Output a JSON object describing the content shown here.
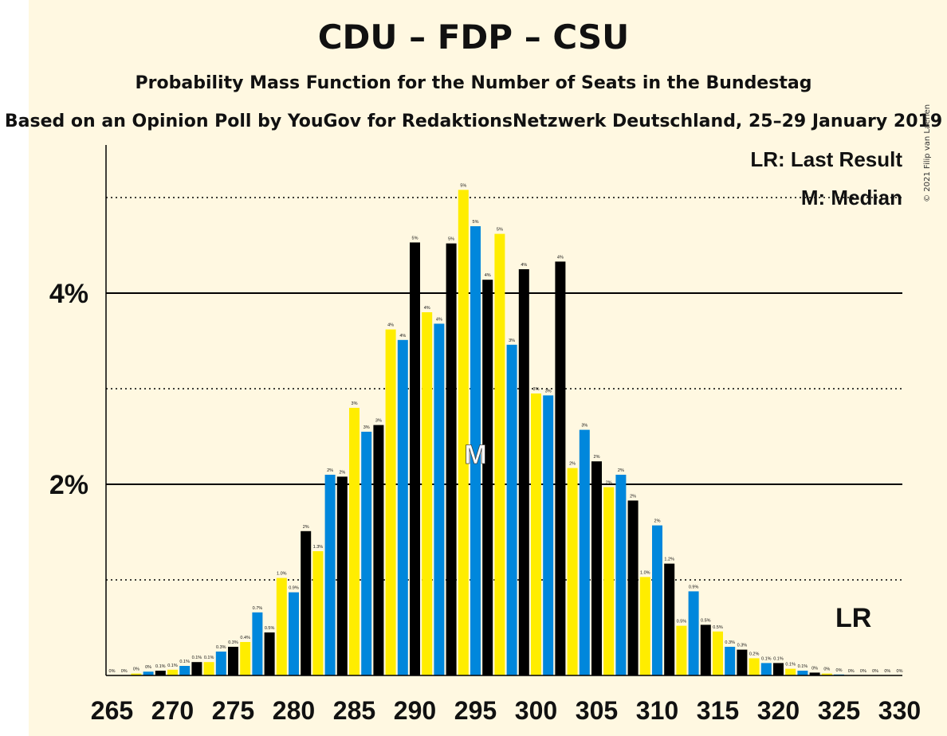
{
  "title": "CDU – FDP – CSU",
  "subtitle": "Probability Mass Function for the Number of Seats in the Bundestag",
  "subtitle2": "Based on an Opinion Poll by YouGov for RedaktionsNetzwerk Deutschland, 25–29 January 2019",
  "copyright": "© 2021 Filip van Laenen",
  "legend": {
    "lr": "LR: Last Result",
    "m": "M: Median"
  },
  "colors": {
    "cdu": "#000000",
    "fdp": "#ffed00",
    "csu": "#0087dc",
    "background": "#fff8e1"
  },
  "chart_data": {
    "type": "bar",
    "title": "CDU – FDP – CSU",
    "xlabel": "",
    "ylabel": "",
    "ylim": [
      0,
      5.5
    ],
    "x_ticks": [
      "265",
      "270",
      "275",
      "280",
      "285",
      "290",
      "295",
      "300",
      "305",
      "310",
      "315",
      "320",
      "325",
      "330"
    ],
    "y_ticks": [
      "2%",
      "4%"
    ],
    "grid": "solid lines at 2% and 4%, dotted lines at 1%, 3%, 5%",
    "median": 295,
    "last_result": 326,
    "median_label": "M",
    "last_result_label": "LR",
    "seats": [
      265,
      266,
      267,
      268,
      269,
      270,
      271,
      272,
      273,
      274,
      275,
      276,
      277,
      278,
      279,
      280,
      281,
      282,
      283,
      284,
      285,
      286,
      287,
      288,
      289,
      290,
      291,
      292,
      293,
      294,
      295,
      296,
      297,
      298,
      299,
      300,
      301,
      302,
      303,
      304,
      305,
      306,
      307,
      308,
      309,
      310,
      311,
      312,
      313,
      314,
      315,
      316,
      317,
      318,
      319,
      320,
      321,
      322,
      323,
      324,
      325,
      326,
      327,
      328,
      329,
      330
    ],
    "values": [
      0,
      0,
      0.02,
      0.04,
      0.05,
      0.06,
      0.1,
      0.14,
      0.14,
      0.25,
      0.3,
      0.35,
      0.66,
      0.45,
      1.02,
      0.87,
      1.51,
      1.3,
      2.1,
      2.08,
      2.8,
      2.55,
      2.62,
      3.62,
      3.51,
      4.53,
      3.8,
      3.68,
      4.52,
      5.08,
      4.7,
      4.14,
      4.62,
      3.46,
      4.25,
      2.95,
      2.93,
      4.33,
      2.17,
      2.57,
      2.24,
      1.97,
      2.1,
      1.83,
      1.03,
      1.57,
      1.17,
      0.52,
      0.88,
      0.53,
      0.46,
      0.3,
      0.27,
      0.18,
      0.13,
      0.13,
      0.07,
      0.05,
      0.03,
      0.02,
      0.01,
      0,
      0,
      0,
      0,
      0
    ],
    "labels": [
      "0%",
      "0%",
      "0%",
      "0%",
      "0.1%",
      "0.1%",
      "0.1%",
      "0.1%",
      "0.1%",
      "0.3%",
      "0.3%",
      "0.4%",
      "0.7%",
      "0.5%",
      "1.0%",
      "0.9%",
      "2%",
      "1.3%",
      "2%",
      "2%",
      "3%",
      "3%",
      "3%",
      "4%",
      "4%",
      "5%",
      "4%",
      "4%",
      "5%",
      "5%",
      "5%",
      "4%",
      "5%",
      "3%",
      "4%",
      "3%",
      "3%",
      "4%",
      "2%",
      "3%",
      "2%",
      "2%",
      "2%",
      "2%",
      "1.0%",
      "2%",
      "1.2%",
      "0.5%",
      "0.9%",
      "0.5%",
      "0.5%",
      "0.3%",
      "0.3%",
      "0.2%",
      "0.1%",
      "0.1%",
      "0.1%",
      "0.1%",
      "0%",
      "0%",
      "0%",
      "0%",
      "0%",
      "0%",
      "0%",
      "0%"
    ]
  }
}
